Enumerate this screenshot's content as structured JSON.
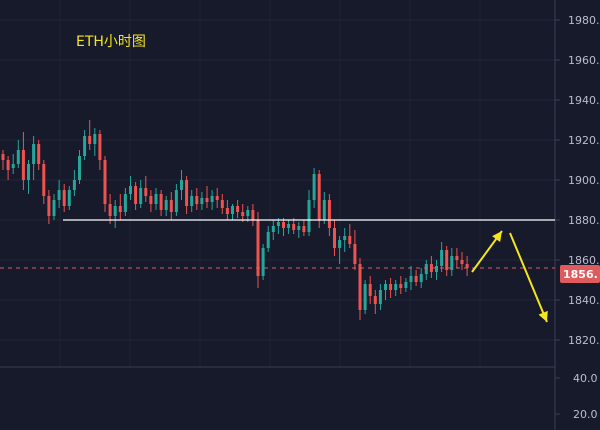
{
  "chart_data": {
    "type": "candlestick",
    "title": "ETH小时图",
    "price_axis": {
      "range": [
        1810,
        1990
      ],
      "tick_values": [
        1820,
        1840,
        1860,
        1880,
        1900,
        1920,
        1940,
        1960,
        1980
      ],
      "tick_labels": [
        "1820.",
        "1840.",
        "1860.",
        "1880.",
        "1900.",
        "1920.",
        "1940.",
        "1960.",
        "1980."
      ]
    },
    "volume_axis": {
      "tick_values": [
        20,
        40
      ],
      "tick_labels": [
        "20.0",
        "40.0"
      ]
    },
    "current_price": {
      "value": 1856,
      "label": "1856."
    },
    "up_color": "#26a69a",
    "down_color": "#ef5350",
    "annotations": {
      "resistance_level": 1880,
      "arrow_color": "#f5e51c"
    },
    "candles": [
      [
        1913,
        1915,
        1905,
        1910
      ],
      [
        1910,
        1912,
        1900,
        1905
      ],
      [
        1906,
        1913,
        1903,
        1908
      ],
      [
        1908,
        1920,
        1906,
        1915
      ],
      [
        1915,
        1924,
        1895,
        1900
      ],
      [
        1900,
        1910,
        1893,
        1908
      ],
      [
        1908,
        1922,
        1900,
        1918
      ],
      [
        1918,
        1920,
        1905,
        1908
      ],
      [
        1908,
        1910,
        1888,
        1892
      ],
      [
        1892,
        1895,
        1878,
        1882
      ],
      [
        1882,
        1893,
        1880,
        1890
      ],
      [
        1890,
        1900,
        1886,
        1895
      ],
      [
        1895,
        1898,
        1884,
        1887
      ],
      [
        1887,
        1897,
        1885,
        1895
      ],
      [
        1895,
        1905,
        1892,
        1900
      ],
      [
        1900,
        1915,
        1898,
        1912
      ],
      [
        1912,
        1925,
        1910,
        1922
      ],
      [
        1922,
        1930,
        1915,
        1918
      ],
      [
        1918,
        1926,
        1912,
        1923
      ],
      [
        1923,
        1925,
        1905,
        1910
      ],
      [
        1910,
        1912,
        1884,
        1888
      ],
      [
        1888,
        1893,
        1878,
        1882
      ],
      [
        1882,
        1890,
        1876,
        1887
      ],
      [
        1887,
        1893,
        1880,
        1884
      ],
      [
        1884,
        1896,
        1882,
        1893
      ],
      [
        1893,
        1902,
        1890,
        1897
      ],
      [
        1897,
        1899,
        1885,
        1888
      ],
      [
        1888,
        1900,
        1886,
        1896
      ],
      [
        1896,
        1902,
        1889,
        1892
      ],
      [
        1892,
        1895,
        1884,
        1888
      ],
      [
        1888,
        1896,
        1885,
        1893
      ],
      [
        1893,
        1895,
        1882,
        1885
      ],
      [
        1885,
        1892,
        1882,
        1890
      ],
      [
        1890,
        1894,
        1880,
        1884
      ],
      [
        1884,
        1898,
        1882,
        1895
      ],
      [
        1895,
        1905,
        1890,
        1900
      ],
      [
        1900,
        1902,
        1883,
        1887
      ],
      [
        1887,
        1895,
        1884,
        1892
      ],
      [
        1892,
        1896,
        1885,
        1888
      ],
      [
        1888,
        1894,
        1885,
        1891
      ],
      [
        1891,
        1897,
        1886,
        1889
      ],
      [
        1889,
        1895,
        1885,
        1892
      ],
      [
        1892,
        1896,
        1886,
        1890
      ],
      [
        1890,
        1893,
        1883,
        1886
      ],
      [
        1886,
        1890,
        1880,
        1883
      ],
      [
        1883,
        1888,
        1880,
        1887
      ],
      [
        1887,
        1890,
        1881,
        1884
      ],
      [
        1884,
        1888,
        1879,
        1882
      ],
      [
        1882,
        1887,
        1879,
        1885
      ],
      [
        1885,
        1888,
        1877,
        1880
      ],
      [
        1880,
        1884,
        1846,
        1852
      ],
      [
        1852,
        1868,
        1850,
        1866
      ],
      [
        1866,
        1877,
        1864,
        1874
      ],
      [
        1874,
        1880,
        1870,
        1877
      ],
      [
        1877,
        1881,
        1873,
        1879
      ],
      [
        1879,
        1881,
        1872,
        1876
      ],
      [
        1876,
        1880,
        1873,
        1878
      ],
      [
        1878,
        1881,
        1873,
        1875
      ],
      [
        1875,
        1879,
        1871,
        1877
      ],
      [
        1877,
        1880,
        1872,
        1874
      ],
      [
        1874,
        1895,
        1872,
        1890
      ],
      [
        1890,
        1906,
        1886,
        1903
      ],
      [
        1903,
        1905,
        1876,
        1880
      ],
      [
        1880,
        1894,
        1878,
        1890
      ],
      [
        1890,
        1893,
        1872,
        1876
      ],
      [
        1876,
        1880,
        1862,
        1866
      ],
      [
        1866,
        1872,
        1858,
        1870
      ],
      [
        1870,
        1876,
        1864,
        1872
      ],
      [
        1872,
        1878,
        1866,
        1868
      ],
      [
        1868,
        1875,
        1855,
        1858
      ],
      [
        1858,
        1861,
        1830,
        1835
      ],
      [
        1835,
        1850,
        1833,
        1848
      ],
      [
        1848,
        1852,
        1838,
        1842
      ],
      [
        1842,
        1845,
        1833,
        1838
      ],
      [
        1838,
        1848,
        1835,
        1845
      ],
      [
        1845,
        1850,
        1840,
        1848
      ],
      [
        1848,
        1851,
        1841,
        1845
      ],
      [
        1845,
        1850,
        1842,
        1848
      ],
      [
        1848,
        1852,
        1843,
        1846
      ],
      [
        1846,
        1851,
        1844,
        1849
      ],
      [
        1849,
        1857,
        1845,
        1852
      ],
      [
        1852,
        1855,
        1847,
        1849
      ],
      [
        1849,
        1856,
        1846,
        1853
      ],
      [
        1853,
        1860,
        1850,
        1858
      ],
      [
        1858,
        1862,
        1851,
        1854
      ],
      [
        1854,
        1860,
        1850,
        1857
      ],
      [
        1857,
        1869,
        1854,
        1865
      ],
      [
        1865,
        1867,
        1852,
        1855
      ],
      [
        1855,
        1866,
        1852,
        1862
      ],
      [
        1862,
        1866,
        1856,
        1860
      ],
      [
        1860,
        1864,
        1855,
        1858
      ],
      [
        1858,
        1862,
        1852,
        1856
      ]
    ]
  }
}
